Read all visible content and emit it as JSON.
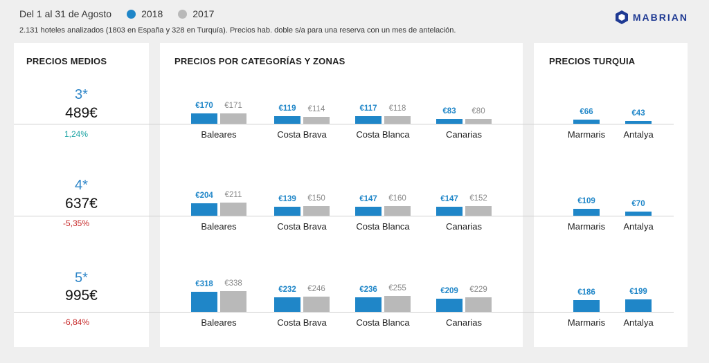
{
  "header": {
    "date_range": "Del 1 al 31 de Agosto",
    "legend": [
      {
        "label": "2018",
        "color": "#1f86c8"
      },
      {
        "label": "2017",
        "color": "#b9b9b9"
      }
    ],
    "subtitle": "2.131 hoteles analizados (1803 en España y 328 en Turquía). Precios hab. doble s/a para una reserva con un mes de antelación.",
    "logo_text": "MABRIAN"
  },
  "colors": {
    "y2018": "#1f86c8",
    "y2017": "#b9b9b9",
    "positive": "#1aa3a3",
    "negative": "#c62828",
    "category": "#2f86c8"
  },
  "avg_panel": {
    "title": "PRECIOS MEDIOS",
    "rows": [
      {
        "category": "3*",
        "value": "489€",
        "change": "1,24%",
        "trend": "positive"
      },
      {
        "category": "4*",
        "value": "637€",
        "change": "-5,35%",
        "trend": "negative"
      },
      {
        "category": "5*",
        "value": "995€",
        "change": "-6,84%",
        "trend": "negative"
      }
    ]
  },
  "zones_panel": {
    "title": "PRECIOS POR CATEGORÍAS Y ZONAS"
  },
  "turkey_panel": {
    "title": "PRECIOS TURQUIA"
  },
  "chart_data": [
    {
      "type": "bar",
      "title": "PRECIOS POR CATEGORÍAS Y ZONAS",
      "row": "3*",
      "categories": [
        "Baleares",
        "Costa Brava",
        "Costa Blanca",
        "Canarias"
      ],
      "series": [
        {
          "name": "2018",
          "values": [
            170,
            119,
            117,
            83
          ],
          "labels": [
            "€170",
            "€119",
            "€117",
            "€83"
          ]
        },
        {
          "name": "2017",
          "values": [
            171,
            114,
            118,
            80
          ],
          "labels": [
            "€171",
            "€114",
            "€118",
            "€80"
          ]
        }
      ]
    },
    {
      "type": "bar",
      "title": "PRECIOS POR CATEGORÍAS Y ZONAS",
      "row": "4*",
      "categories": [
        "Baleares",
        "Costa Brava",
        "Costa Blanca",
        "Canarias"
      ],
      "series": [
        {
          "name": "2018",
          "values": [
            204,
            139,
            147,
            147
          ],
          "labels": [
            "€204",
            "€139",
            "€147",
            "€147"
          ]
        },
        {
          "name": "2017",
          "values": [
            211,
            150,
            160,
            152
          ],
          "labels": [
            "€211",
            "€150",
            "€160",
            "€152"
          ]
        }
      ]
    },
    {
      "type": "bar",
      "title": "PRECIOS POR CATEGORÍAS Y ZONAS",
      "row": "5*",
      "categories": [
        "Baleares",
        "Costa Brava",
        "Costa Blanca",
        "Canarias"
      ],
      "series": [
        {
          "name": "2018",
          "values": [
            318,
            232,
            236,
            209
          ],
          "labels": [
            "€318",
            "€232",
            "€236",
            "€209"
          ]
        },
        {
          "name": "2017",
          "values": [
            338,
            246,
            255,
            229
          ],
          "labels": [
            "€338",
            "€246",
            "€255",
            "€229"
          ]
        }
      ]
    },
    {
      "type": "bar",
      "title": "PRECIOS TURQUIA",
      "row": "3*",
      "categories": [
        "Marmaris",
        "Antalya"
      ],
      "series": [
        {
          "name": "2018",
          "values": [
            66,
            43
          ],
          "labels": [
            "€66",
            "€43"
          ]
        }
      ]
    },
    {
      "type": "bar",
      "title": "PRECIOS TURQUIA",
      "row": "4*",
      "categories": [
        "Marmaris",
        "Antalya"
      ],
      "series": [
        {
          "name": "2018",
          "values": [
            109,
            70
          ],
          "labels": [
            "€109",
            "€70"
          ]
        }
      ]
    },
    {
      "type": "bar",
      "title": "PRECIOS TURQUIA",
      "row": "5*",
      "categories": [
        "Marmaris",
        "Antalya"
      ],
      "series": [
        {
          "name": "2018",
          "values": [
            186,
            199
          ],
          "labels": [
            "€186",
            "€199"
          ]
        }
      ]
    }
  ]
}
